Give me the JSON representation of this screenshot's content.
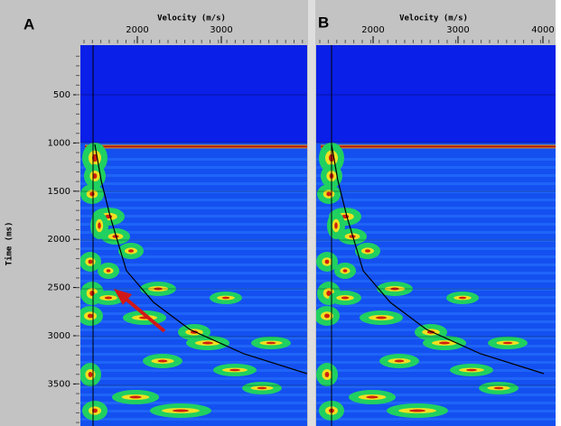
{
  "y_axis": {
    "title": "Time (ms)",
    "ticks": [
      500,
      1000,
      1500,
      2000,
      2500,
      3000,
      3500
    ]
  },
  "panels": [
    {
      "label": "A",
      "x_axis": {
        "title": "Velocity (m/s)",
        "ticks": [
          2000,
          3000
        ]
      }
    },
    {
      "label": "B",
      "x_axis": {
        "title": "Velocity (m/s)",
        "ticks": [
          2000,
          3000,
          4000
        ]
      }
    }
  ]
}
